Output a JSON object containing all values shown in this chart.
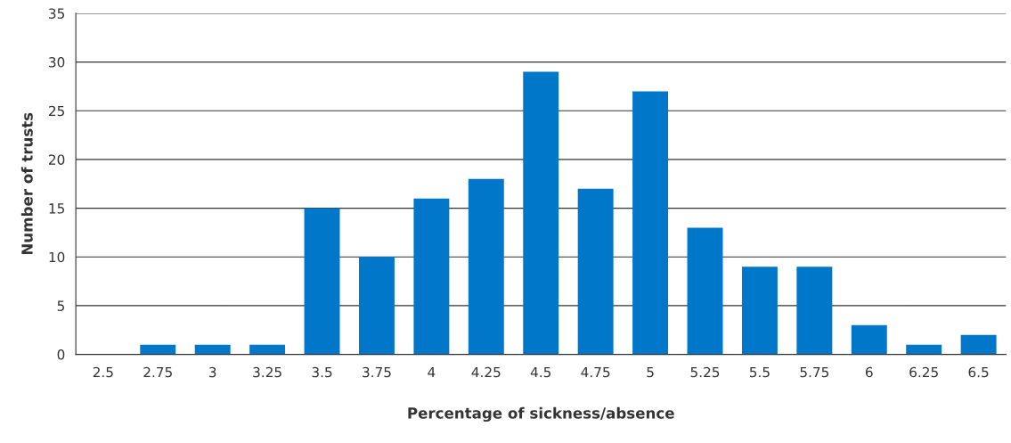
{
  "chart_data": {
    "type": "bar",
    "xlabel": "Percentage of sickness/absence",
    "ylabel": "Number of trusts",
    "categories": [
      "2.5",
      "2.75",
      "3",
      "3.25",
      "3.5",
      "3.75",
      "4",
      "4.25",
      "4.5",
      "4.75",
      "5",
      "5.25",
      "5.5",
      "5.75",
      "6",
      "6.25",
      "6.5"
    ],
    "values": [
      0,
      1,
      1,
      1,
      15,
      10,
      16,
      18,
      29,
      17,
      27,
      13,
      9,
      9,
      3,
      1,
      2
    ],
    "color": "#0077c8",
    "ylim": [
      0,
      35
    ],
    "yticks": [
      0,
      5,
      10,
      15,
      20,
      25,
      30,
      35
    ],
    "grid": "y",
    "legend": false
  }
}
